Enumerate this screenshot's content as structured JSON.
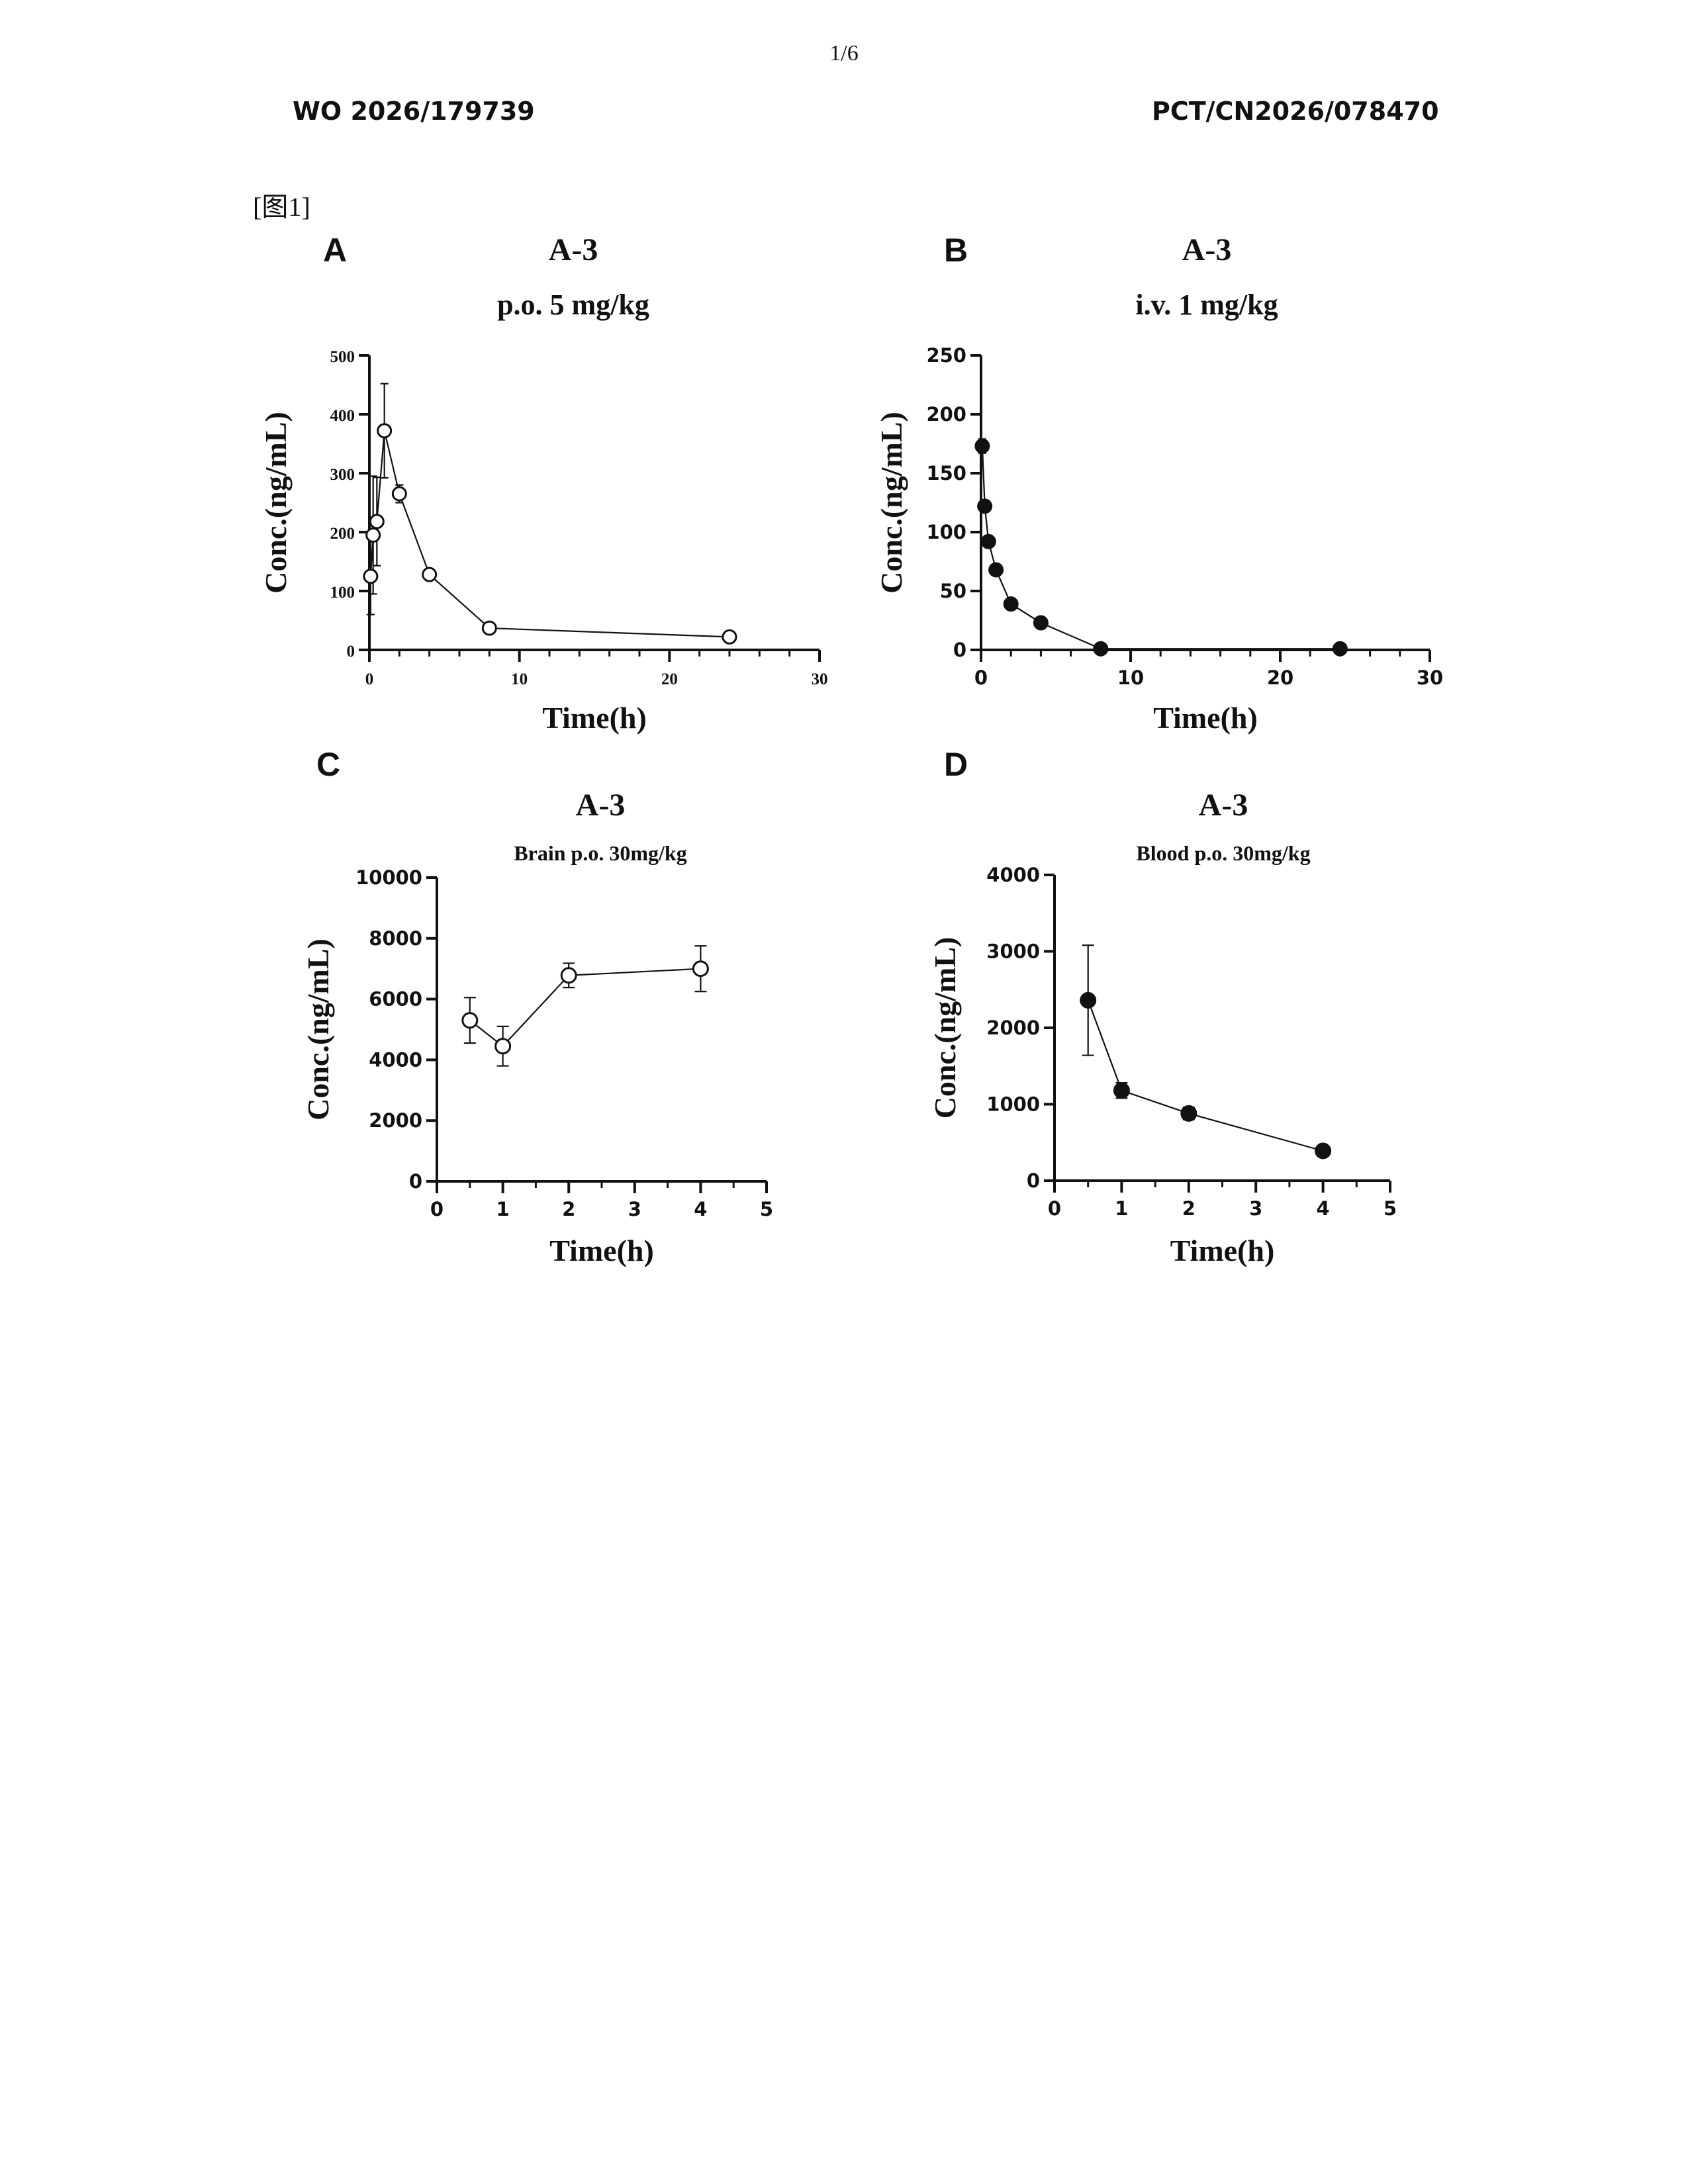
{
  "page": {
    "page_number": "1/6",
    "pub_number": "WO 2026/179739",
    "app_number": "PCT/CN2026/078470",
    "figure_label": "[图1]"
  },
  "chart_data": [
    {
      "panel": "A",
      "type": "line",
      "title": "A-3",
      "subtitle": "p.o. 5 mg/kg",
      "xlabel": "Time(h)",
      "ylabel": "Conc.(ng/mL)",
      "xlim": [
        0,
        30
      ],
      "ylim": [
        0,
        500
      ],
      "xticks": [
        "0",
        "10",
        "20",
        "30"
      ],
      "yticks": [
        "0",
        "100",
        "200",
        "300",
        "400",
        "500"
      ],
      "marker": "open-circle",
      "x": [
        0.083,
        0.25,
        0.5,
        1,
        2,
        4,
        8,
        24
      ],
      "y": [
        125,
        195,
        218,
        372,
        265,
        128,
        37,
        22
      ],
      "err": [
        65,
        100,
        75,
        80,
        15,
        5,
        3,
        4
      ],
      "grid": false,
      "legend": "none"
    },
    {
      "panel": "B",
      "type": "line",
      "title": "A-3",
      "subtitle": "i.v.  1 mg/kg",
      "xlabel": "Time(h)",
      "ylabel": "Conc.(ng/mL)",
      "xlim": [
        0,
        30
      ],
      "ylim": [
        0,
        250
      ],
      "xticks": [
        "0",
        "10",
        "20",
        "30"
      ],
      "yticks": [
        "0",
        "50",
        "100",
        "150",
        "200",
        "250"
      ],
      "marker": "filled-circle",
      "x": [
        0.083,
        0.25,
        0.5,
        1,
        2,
        4,
        8,
        24
      ],
      "y": [
        173,
        122,
        92,
        68,
        39,
        23,
        1,
        1
      ],
      "err": [
        6,
        5,
        5,
        3,
        2,
        1,
        0,
        0
      ],
      "grid": false,
      "legend": "none"
    },
    {
      "panel": "C",
      "type": "line",
      "title": "A-3",
      "subtitle": "Brain p.o. 30mg/kg",
      "xlabel": "Time(h)",
      "ylabel": "Conc.(ng/mL)",
      "xlim": [
        0,
        5
      ],
      "ylim": [
        0,
        10000
      ],
      "xticks": [
        "0",
        "1",
        "2",
        "3",
        "4",
        "5"
      ],
      "yticks": [
        "0",
        "2000",
        "4000",
        "6000",
        "8000",
        "10000"
      ],
      "marker": "open-circle",
      "x": [
        0.5,
        1,
        2,
        4
      ],
      "y": [
        5300,
        4450,
        6780,
        7000
      ],
      "err": [
        750,
        650,
        400,
        750
      ],
      "grid": false,
      "legend": "none"
    },
    {
      "panel": "D",
      "type": "line",
      "title": "A-3",
      "subtitle": "Blood p.o. 30mg/kg",
      "xlabel": "Time(h)",
      "ylabel": "Conc.(ng/mL)",
      "xlim": [
        0,
        5
      ],
      "ylim": [
        0,
        4000
      ],
      "xticks": [
        "0",
        "1",
        "2",
        "3",
        "4",
        "5"
      ],
      "yticks": [
        "0",
        "1000",
        "2000",
        "3000",
        "4000"
      ],
      "marker": "filled-circle",
      "x": [
        0.5,
        1,
        2,
        4
      ],
      "y": [
        2360,
        1180,
        880,
        390
      ],
      "err": [
        720,
        100,
        80,
        30
      ],
      "grid": false,
      "legend": "none"
    }
  ]
}
